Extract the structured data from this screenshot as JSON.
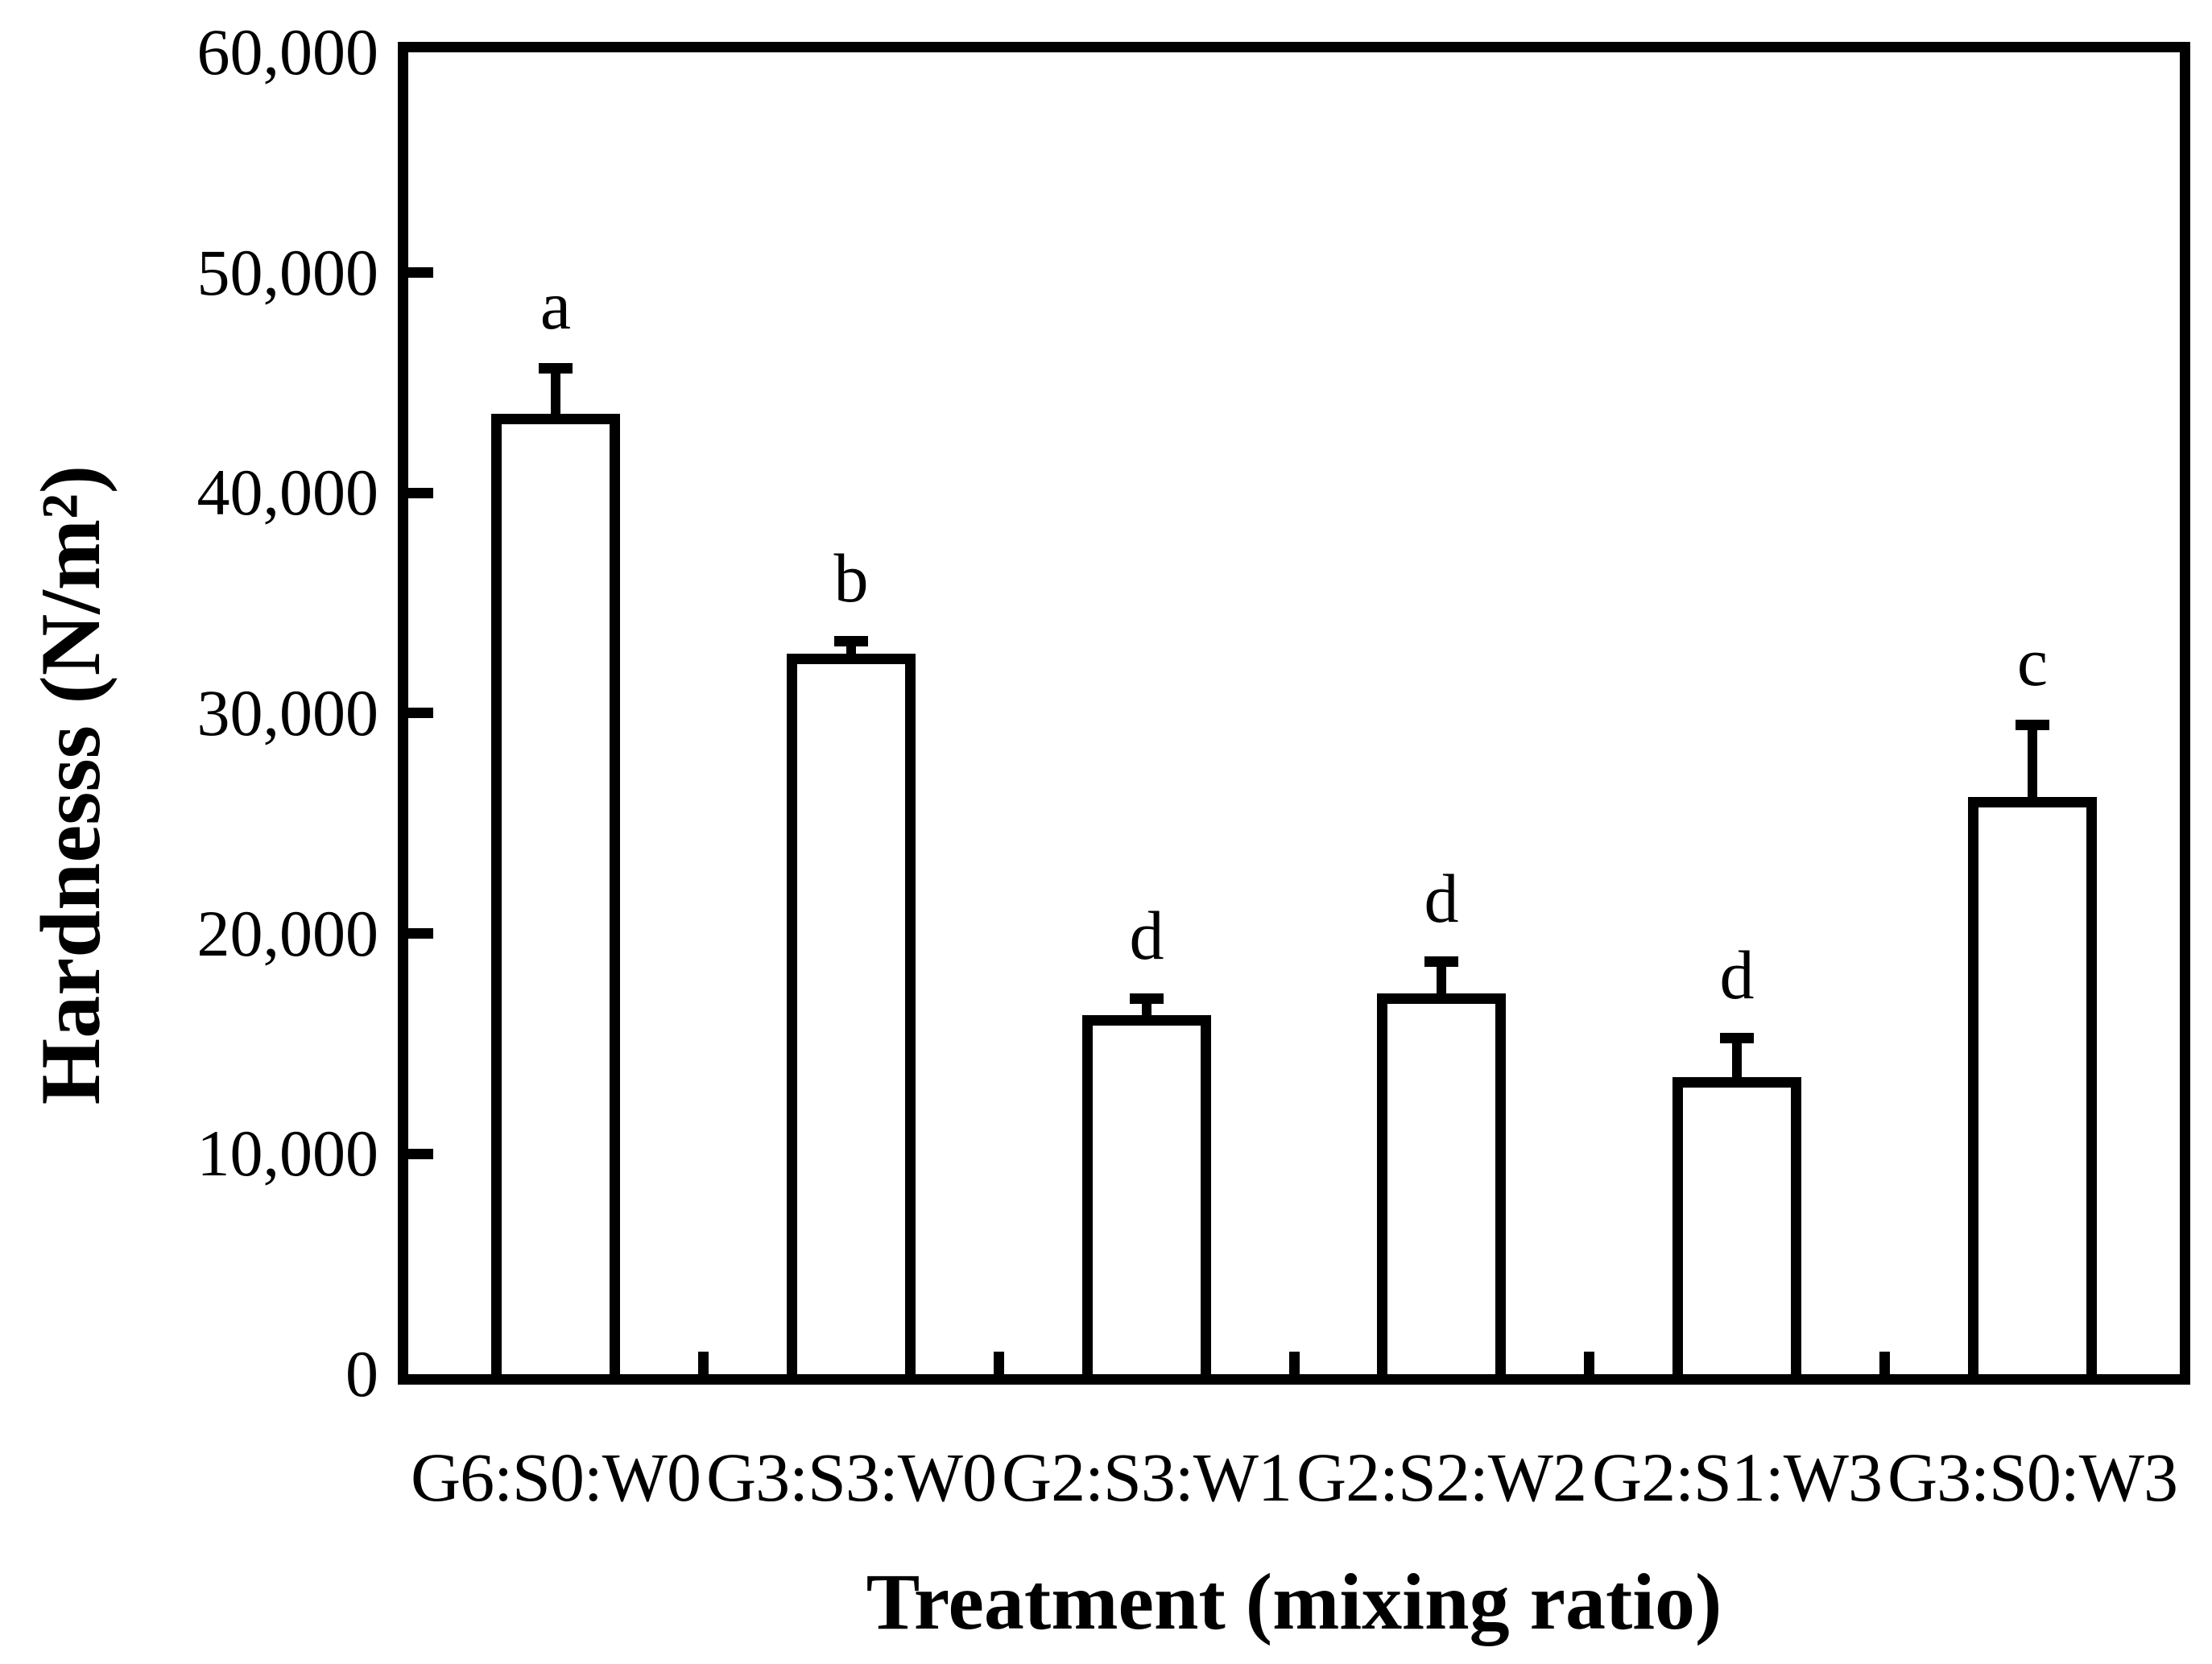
{
  "figure": {
    "background": "#ffffff",
    "stroke_color": "#000000"
  },
  "chart_data": {
    "type": "bar",
    "title": "",
    "xlabel": "Treatment (mixing ratio)",
    "ylabel": "Hardnesss (N/m²)",
    "categories": [
      "G6:S0:W0",
      "G3:S3:W0",
      "G2:S3:W1",
      "G2:S2:W2",
      "G2:S1:W3",
      "G3:S0:W3"
    ],
    "values": [
      43600,
      32700,
      16300,
      17300,
      13500,
      26200
    ],
    "error_upper": [
      2100,
      600,
      750,
      1450,
      1800,
      3300
    ],
    "sig_letters": [
      "a",
      "b",
      "d",
      "d",
      "d",
      "c"
    ],
    "ylim": [
      0,
      60000
    ],
    "ytick_step": 10000,
    "ytick_labels": [
      "0",
      "10,000",
      "20,000",
      "30,000",
      "40,000",
      "50,000",
      "60,000"
    ],
    "grid": false,
    "legend": "none",
    "bar_fill": "#ffffff",
    "bar_stroke": "#000000",
    "tick_direction": "in"
  }
}
